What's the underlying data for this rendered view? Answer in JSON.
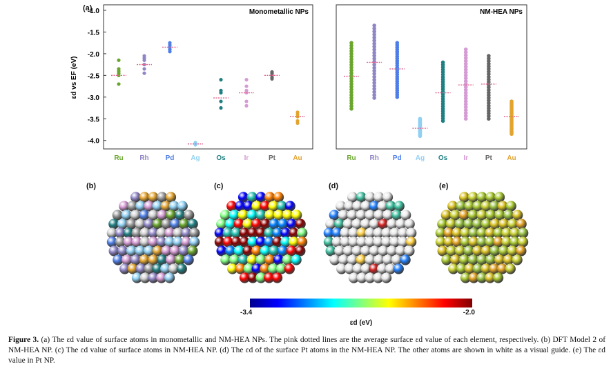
{
  "panel_labels": {
    "a": "(a)",
    "b": "(b)",
    "c": "(c)",
    "d": "(d)",
    "e": "(e)"
  },
  "colorbar": {
    "min_label": "-3.4",
    "max_label": "-2.0",
    "title": "εd (eV)"
  },
  "caption": {
    "figure_label": "Figure 3.",
    "text": "(a) The εd value of surface atoms in monometallic and NM-HEA NPs. The pink dotted lines are the average surface εd value of each element, respectively. (b) DFT Model 2 of NM-HEA NP. (c) The εd value of surface atoms in NM-HEA NP. (d) The εd of the surface Pt atoms in the NM-HEA NP. The other atoms are shown in white as a visual guide. (e) The εd value in Pt NP."
  },
  "chart_data": [
    {
      "type": "scatter",
      "title": "Monometallic NPs",
      "ylabel": "εd vs EF (eV)",
      "ylim": [
        -4.1,
        -1.0
      ],
      "yticks": [
        "-1.0",
        "-1.5",
        "-2.0",
        "-2.5",
        "-3.0",
        "-3.5",
        "-4.0"
      ],
      "categories": [
        "Ru",
        "Rh",
        "Pd",
        "Ag",
        "Os",
        "Ir",
        "Pt",
        "Au"
      ],
      "category_colors": [
        "#6aa62d",
        "#8f86c6",
        "#4d7ee8",
        "#8fd0f3",
        "#1f7f82",
        "#d59bd4",
        "#666666",
        "#e3a42f"
      ],
      "mean_line_color": "#e2668f",
      "series": [
        {
          "category": "Ru",
          "values": [
            -2.15,
            -2.35,
            -2.4,
            -2.45,
            -2.5,
            -2.7
          ],
          "mean": -2.5
        },
        {
          "category": "Rh",
          "values": [
            -2.05,
            -2.1,
            -2.15,
            -2.25,
            -2.35,
            -2.45
          ],
          "mean": -2.25
        },
        {
          "category": "Pd",
          "values": [
            -1.75,
            -1.8,
            -1.85,
            -1.9,
            -1.95
          ],
          "mean": -1.85
        },
        {
          "category": "Ag",
          "values": [
            -4.05,
            -4.08,
            -4.1
          ],
          "mean": -4.08
        },
        {
          "category": "Os",
          "values": [
            -2.6,
            -2.85,
            -2.9,
            -3.1,
            -3.25
          ],
          "mean": -3.02
        },
        {
          "category": "Ir",
          "values": [
            -2.6,
            -2.75,
            -2.85,
            -2.9,
            -3.1,
            -3.2
          ],
          "mean": -2.9
        },
        {
          "category": "Pt",
          "values": [
            -2.42,
            -2.45,
            -2.5,
            -2.55,
            -2.58
          ],
          "mean": -2.5
        },
        {
          "category": "Au",
          "values": [
            -3.35,
            -3.4,
            -3.45,
            -3.55,
            -3.6
          ],
          "mean": -3.45
        }
      ]
    },
    {
      "type": "scatter",
      "title": "NM-HEA NPs",
      "ylim": [
        -4.1,
        -1.0
      ],
      "categories": [
        "Ru",
        "Rh",
        "Pd",
        "Ag",
        "Os",
        "Ir",
        "Pt",
        "Au"
      ],
      "category_colors": [
        "#6aa62d",
        "#8f86c6",
        "#4d7ee8",
        "#8fd0f3",
        "#1f7f82",
        "#d59bd4",
        "#666666",
        "#e3a42f"
      ],
      "mean_line_color": "#e2668f",
      "series": [
        {
          "category": "Ru",
          "range": [
            -3.27,
            -1.75
          ],
          "mean": -2.52
        },
        {
          "category": "Rh",
          "range": [
            -3.02,
            -1.35
          ],
          "mean": -2.2
        },
        {
          "category": "Pd",
          "range": [
            -3.0,
            -1.75
          ],
          "mean": -2.35
        },
        {
          "category": "Ag",
          "range": [
            -3.9,
            -3.5
          ],
          "mean": -3.72
        },
        {
          "category": "Os",
          "range": [
            -3.55,
            -2.2
          ],
          "mean": -2.9
        },
        {
          "category": "Ir",
          "range": [
            -3.5,
            -1.9
          ],
          "mean": -2.72
        },
        {
          "category": "Pt",
          "range": [
            -3.5,
            -2.05
          ],
          "mean": -2.7
        },
        {
          "category": "Au",
          "range": [
            -3.85,
            -3.1
          ],
          "mean": -3.45
        }
      ]
    }
  ]
}
